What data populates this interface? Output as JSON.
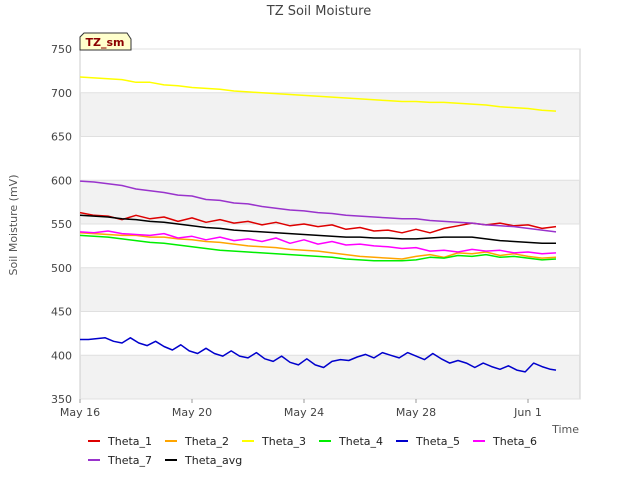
{
  "chart_data": {
    "type": "line",
    "title": "TZ Soil Moisture",
    "xlabel": "Time",
    "ylabel": "Soil Moisture (mV)",
    "badge": "TZ_sm",
    "ylim": [
      350,
      750
    ],
    "yticks": [
      350,
      400,
      450,
      500,
      550,
      600,
      650,
      700,
      750
    ],
    "xlim": [
      "May 16",
      "Jun 2"
    ],
    "xticks": [
      {
        "label": "May 16",
        "day": 0
      },
      {
        "label": "May 20",
        "day": 4
      },
      {
        "label": "May 24",
        "day": 8
      },
      {
        "label": "May 28",
        "day": 12
      },
      {
        "label": "Jun 1",
        "day": 16
      }
    ],
    "grid": true,
    "legend_position": "bottom",
    "series": [
      {
        "name": "Theta_1",
        "color": "#dd0000",
        "x": [
          0,
          0.5,
          1,
          1.5,
          2,
          2.5,
          3,
          3.5,
          4,
          4.5,
          5,
          5.5,
          6,
          6.5,
          7,
          7.5,
          8,
          8.5,
          9,
          9.5,
          10,
          10.5,
          11,
          11.5,
          12,
          12.5,
          13,
          13.5,
          14,
          14.5,
          15,
          15.5,
          16,
          16.5,
          17
        ],
        "y": [
          563,
          560,
          559,
          555,
          560,
          556,
          558,
          553,
          557,
          552,
          555,
          551,
          553,
          549,
          552,
          548,
          550,
          547,
          549,
          544,
          546,
          542,
          543,
          540,
          544,
          540,
          545,
          548,
          551,
          549,
          551,
          548,
          549,
          545,
          547
        ]
      },
      {
        "name": "Theta_2",
        "color": "#ffa500",
        "x": [
          0,
          0.5,
          1,
          1.5,
          2,
          2.5,
          3,
          3.5,
          4,
          4.5,
          5,
          5.5,
          6,
          6.5,
          7,
          7.5,
          8,
          8.5,
          9,
          9.5,
          10,
          10.5,
          11,
          11.5,
          12,
          12.5,
          13,
          13.5,
          14,
          14.5,
          15,
          15.5,
          16,
          16.5,
          17
        ],
        "y": [
          540,
          539,
          538,
          537,
          537,
          535,
          535,
          533,
          532,
          530,
          529,
          527,
          525,
          524,
          523,
          521,
          520,
          519,
          517,
          515,
          513,
          512,
          511,
          510,
          513,
          515,
          512,
          517,
          516,
          518,
          514,
          516,
          513,
          511,
          512
        ]
      },
      {
        "name": "Theta_3",
        "color": "#ffff00",
        "x": [
          0,
          0.5,
          1,
          1.5,
          2,
          2.5,
          3,
          3.5,
          4,
          4.5,
          5,
          5.5,
          6,
          6.5,
          7,
          7.5,
          8,
          8.5,
          9,
          9.5,
          10,
          10.5,
          11,
          11.5,
          12,
          12.5,
          13,
          13.5,
          14,
          14.5,
          15,
          15.5,
          16,
          16.5,
          17
        ],
        "y": [
          718,
          717,
          716,
          715,
          712,
          712,
          709,
          708,
          706,
          705,
          704,
          702,
          701,
          700,
          699,
          698,
          697,
          696,
          695,
          694,
          693,
          692,
          691,
          690,
          690,
          689,
          689,
          688,
          687,
          686,
          684,
          683,
          682,
          680,
          679
        ]
      },
      {
        "name": "Theta_4",
        "color": "#00ee00",
        "x": [
          0,
          0.5,
          1,
          1.5,
          2,
          2.5,
          3,
          3.5,
          4,
          4.5,
          5,
          5.5,
          6,
          6.5,
          7,
          7.5,
          8,
          8.5,
          9,
          9.5,
          10,
          10.5,
          11,
          11.5,
          12,
          12.5,
          13,
          13.5,
          14,
          14.5,
          15,
          15.5,
          16,
          16.5,
          17
        ],
        "y": [
          537,
          536,
          535,
          533,
          531,
          529,
          528,
          526,
          524,
          522,
          520,
          519,
          518,
          517,
          516,
          515,
          514,
          513,
          512,
          510,
          509,
          508,
          508,
          508,
          509,
          512,
          511,
          514,
          513,
          515,
          512,
          513,
          511,
          509,
          510
        ]
      },
      {
        "name": "Theta_5",
        "color": "#0000cc",
        "x": [
          0,
          0.3,
          0.6,
          0.9,
          1.2,
          1.5,
          1.8,
          2.1,
          2.4,
          2.7,
          3.0,
          3.3,
          3.6,
          3.9,
          4.2,
          4.5,
          4.8,
          5.1,
          5.4,
          5.7,
          6.0,
          6.3,
          6.6,
          6.9,
          7.2,
          7.5,
          7.8,
          8.1,
          8.4,
          8.7,
          9.0,
          9.3,
          9.6,
          9.9,
          10.2,
          10.5,
          10.8,
          11.1,
          11.4,
          11.7,
          12.0,
          12.3,
          12.6,
          12.9,
          13.2,
          13.5,
          13.8,
          14.1,
          14.4,
          14.7,
          15.0,
          15.3,
          15.6,
          15.9,
          16.2,
          16.5,
          16.8,
          17.0
        ],
        "y": [
          418,
          418,
          419,
          420,
          416,
          414,
          420,
          414,
          411,
          416,
          410,
          406,
          412,
          405,
          402,
          408,
          402,
          399,
          405,
          399,
          397,
          403,
          396,
          393,
          399,
          392,
          389,
          396,
          389,
          386,
          393,
          395,
          394,
          398,
          401,
          397,
          403,
          400,
          397,
          403,
          399,
          395,
          402,
          396,
          391,
          394,
          391,
          386,
          391,
          387,
          384,
          388,
          383,
          381,
          391,
          387,
          384,
          383
        ]
      },
      {
        "name": "Theta_6",
        "color": "#ff00ff",
        "x": [
          0,
          0.5,
          1,
          1.5,
          2,
          2.5,
          3,
          3.5,
          4,
          4.5,
          5,
          5.5,
          6,
          6.5,
          7,
          7.5,
          8,
          8.5,
          9,
          9.5,
          10,
          10.5,
          11,
          11.5,
          12,
          12.5,
          13,
          13.5,
          14,
          14.5,
          15,
          15.5,
          16,
          16.5,
          17
        ],
        "y": [
          541,
          540,
          542,
          539,
          538,
          537,
          539,
          534,
          536,
          532,
          535,
          531,
          533,
          530,
          534,
          528,
          532,
          527,
          530,
          526,
          527,
          525,
          524,
          522,
          523,
          519,
          520,
          518,
          521,
          519,
          520,
          517,
          518,
          516,
          517
        ]
      },
      {
        "name": "Theta_7",
        "color": "#9933cc",
        "x": [
          0,
          0.5,
          1,
          1.5,
          2,
          2.5,
          3,
          3.5,
          4,
          4.5,
          5,
          5.5,
          6,
          6.5,
          7,
          7.5,
          8,
          8.5,
          9,
          9.5,
          10,
          10.5,
          11,
          11.5,
          12,
          12.5,
          13,
          13.5,
          14,
          14.5,
          15,
          15.5,
          16,
          16.5,
          17
        ],
        "y": [
          599,
          598,
          596,
          594,
          590,
          588,
          586,
          583,
          582,
          578,
          577,
          574,
          573,
          570,
          568,
          566,
          565,
          563,
          562,
          560,
          559,
          558,
          557,
          556,
          556,
          554,
          553,
          552,
          551,
          549,
          548,
          547,
          545,
          543,
          541
        ]
      },
      {
        "name": "Theta_avg",
        "color": "#000000",
        "x": [
          0,
          0.5,
          1,
          1.5,
          2,
          2.5,
          3,
          3.5,
          4,
          4.5,
          5,
          5.5,
          6,
          6.5,
          7,
          7.5,
          8,
          8.5,
          9,
          9.5,
          10,
          10.5,
          11,
          11.5,
          12,
          12.5,
          13,
          13.5,
          14,
          14.5,
          15,
          15.5,
          16,
          16.5,
          17
        ],
        "y": [
          560,
          559,
          558,
          556,
          555,
          553,
          552,
          550,
          548,
          546,
          545,
          543,
          542,
          541,
          540,
          539,
          538,
          537,
          536,
          535,
          535,
          534,
          534,
          533,
          533,
          534,
          535,
          535,
          535,
          533,
          531,
          530,
          529,
          528,
          528
        ]
      }
    ]
  }
}
